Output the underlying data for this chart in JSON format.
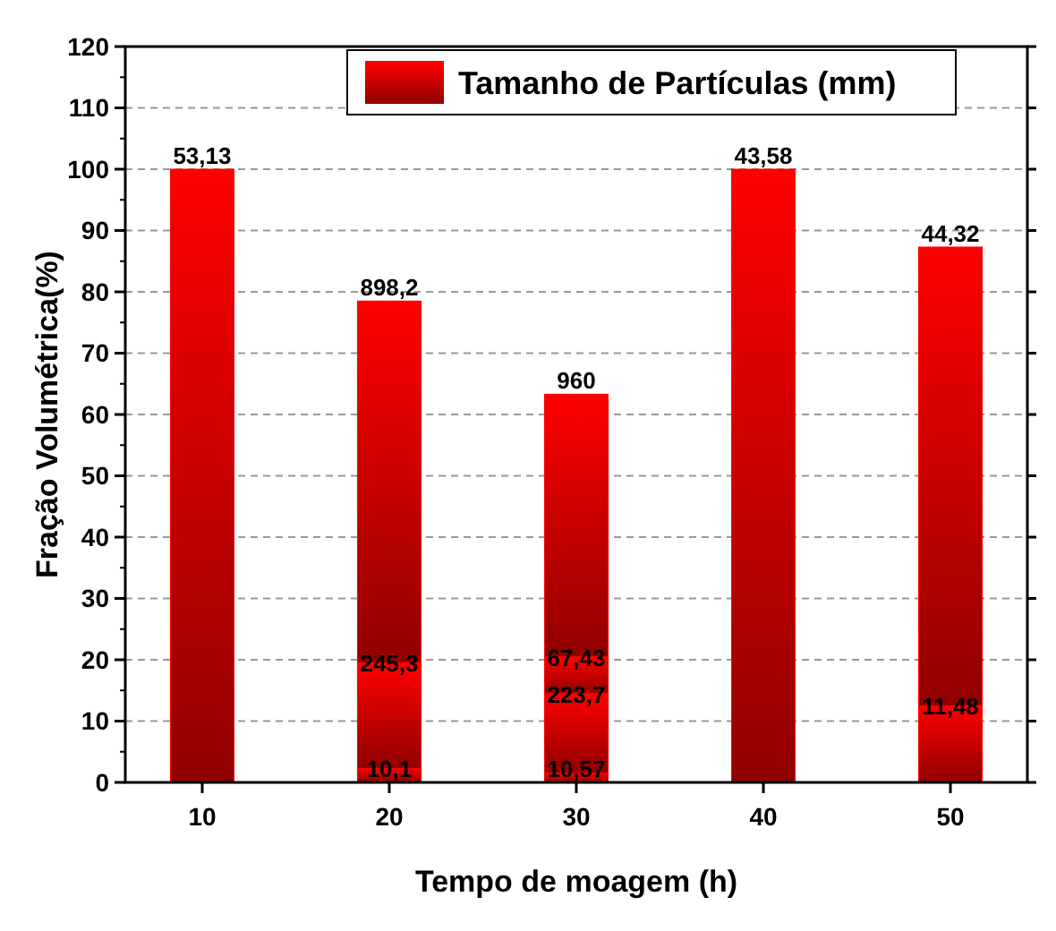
{
  "chart_data": {
    "type": "bar",
    "stacked": true,
    "xlabel": "Tempo de moagem (h)",
    "ylabel": "Fração Volumétrica(%)",
    "categories": [
      "10",
      "20",
      "30",
      "40",
      "50"
    ],
    "ylim": [
      0,
      120
    ],
    "yticks": [
      0,
      10,
      20,
      30,
      40,
      50,
      60,
      70,
      80,
      90,
      100,
      110,
      120
    ],
    "grid": "y",
    "legend": "top",
    "series": [
      {
        "name": "Tamanho de Partículas (mm)",
        "color": "#ff0000",
        "values": [
          100,
          2.3,
          1.5,
          100,
          12.5
        ]
      },
      {
        "color": "#ff0000",
        "values": [
          null,
          17.2,
          13,
          null,
          74.8
        ]
      },
      {
        "color": "#ff0000",
        "values": [
          null,
          59,
          6,
          null,
          null
        ]
      },
      {
        "color": "#ff0000",
        "values": [
          null,
          null,
          42.8,
          null,
          null
        ]
      }
    ],
    "annotations": [
      {
        "text": "53,13",
        "x": "10",
        "y": 100
      },
      {
        "text": "10,1",
        "x": "20",
        "y": 2.3
      },
      {
        "text": "245,3",
        "x": "20",
        "y": 19.5
      },
      {
        "text": "898,2",
        "x": "20",
        "y": 78.5
      },
      {
        "text": "10,57",
        "x": "30",
        "y": 1.5
      },
      {
        "text": "223,7",
        "x": "30",
        "y": 14.5
      },
      {
        "text": "67,43",
        "x": "30",
        "y": 20.5
      },
      {
        "text": "960",
        "x": "30",
        "y": 63.3
      },
      {
        "text": "43,58",
        "x": "40",
        "y": 100
      },
      {
        "text": "11,48",
        "x": "50",
        "y": 12.5
      },
      {
        "text": "44,32",
        "x": "50",
        "y": 87.3
      }
    ]
  }
}
